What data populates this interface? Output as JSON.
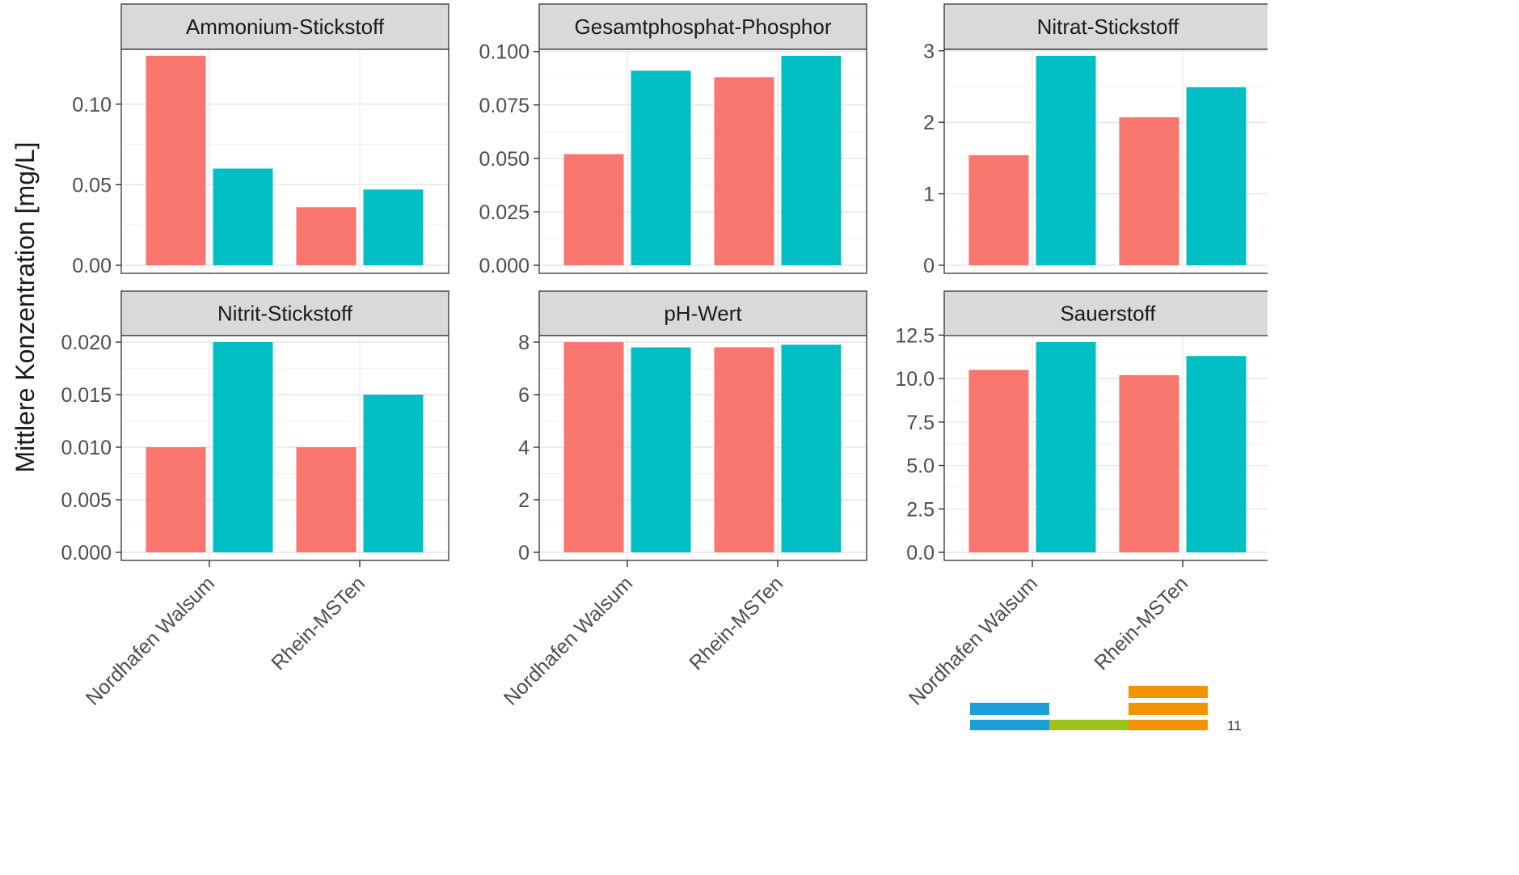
{
  "chart_data": {
    "type": "bar",
    "layout": "facet-grid 2x3",
    "ylabel": "Mittlere Konzentration [mg/L]",
    "xlabel": "",
    "categories": [
      "Nordhafen Walsum",
      "Rhein-MSTen"
    ],
    "series_colors": [
      "#F8766D",
      "#00BFC4"
    ],
    "grid": true,
    "legend": "none",
    "panels": [
      {
        "title": "Ammonium-Stickstoff",
        "ylim": [
          0,
          0.13
        ],
        "yticks": [
          0.0,
          0.05,
          0.1
        ],
        "tick_labels": [
          "0.00",
          "0.05",
          "0.10"
        ],
        "series": [
          {
            "values": [
              0.13,
              0.036
            ]
          },
          {
            "values": [
              0.06,
              0.047
            ]
          }
        ]
      },
      {
        "title": "Gesamtphosphat-Phosphor",
        "ylim": [
          0,
          0.098
        ],
        "yticks": [
          0.0,
          0.025,
          0.05,
          0.075,
          0.1
        ],
        "tick_labels": [
          "0.000",
          "0.025",
          "0.050",
          "0.075",
          "0.100"
        ],
        "series": [
          {
            "values": [
              0.052,
              0.088
            ]
          },
          {
            "values": [
              0.091,
              0.098
            ]
          }
        ]
      },
      {
        "title": "Nitrat-Stickstoff",
        "ylim": [
          0,
          2.93
        ],
        "yticks": [
          0,
          1,
          2,
          3
        ],
        "tick_labels": [
          "0",
          "1",
          "2",
          "3"
        ],
        "series": [
          {
            "values": [
              1.54,
              2.07
            ]
          },
          {
            "values": [
              2.93,
              2.49
            ]
          }
        ]
      },
      {
        "title": "Nitrit-Stickstoff",
        "ylim": [
          0,
          0.02
        ],
        "yticks": [
          0.0,
          0.005,
          0.01,
          0.015,
          0.02
        ],
        "tick_labels": [
          "0.000",
          "0.005",
          "0.010",
          "0.015",
          "0.020"
        ],
        "series": [
          {
            "values": [
              0.01,
              0.01
            ]
          },
          {
            "values": [
              0.02,
              0.015
            ]
          }
        ]
      },
      {
        "title": "pH-Wert",
        "ylim": [
          0,
          8.0
        ],
        "yticks": [
          0,
          2,
          4,
          6,
          8
        ],
        "tick_labels": [
          "0",
          "2",
          "4",
          "6",
          "8"
        ],
        "series": [
          {
            "values": [
              8.0,
              7.8
            ]
          },
          {
            "values": [
              7.8,
              7.9
            ]
          }
        ]
      },
      {
        "title": "Sauerstoff",
        "ylim": [
          0,
          12.1
        ],
        "yticks": [
          0,
          2.5,
          5.0,
          7.5,
          10.0,
          12.5
        ],
        "tick_labels": [
          "0.0",
          "2.5",
          "5.0",
          "7.5",
          "10.0",
          "12.5"
        ],
        "series": [
          {
            "values": [
              10.5,
              10.2
            ]
          },
          {
            "values": [
              12.1,
              11.3
            ]
          }
        ]
      }
    ]
  },
  "footer": {
    "page_number": "11",
    "logo_colors": [
      "#1a9fdb",
      "#9dc21a",
      "#f39200"
    ]
  }
}
